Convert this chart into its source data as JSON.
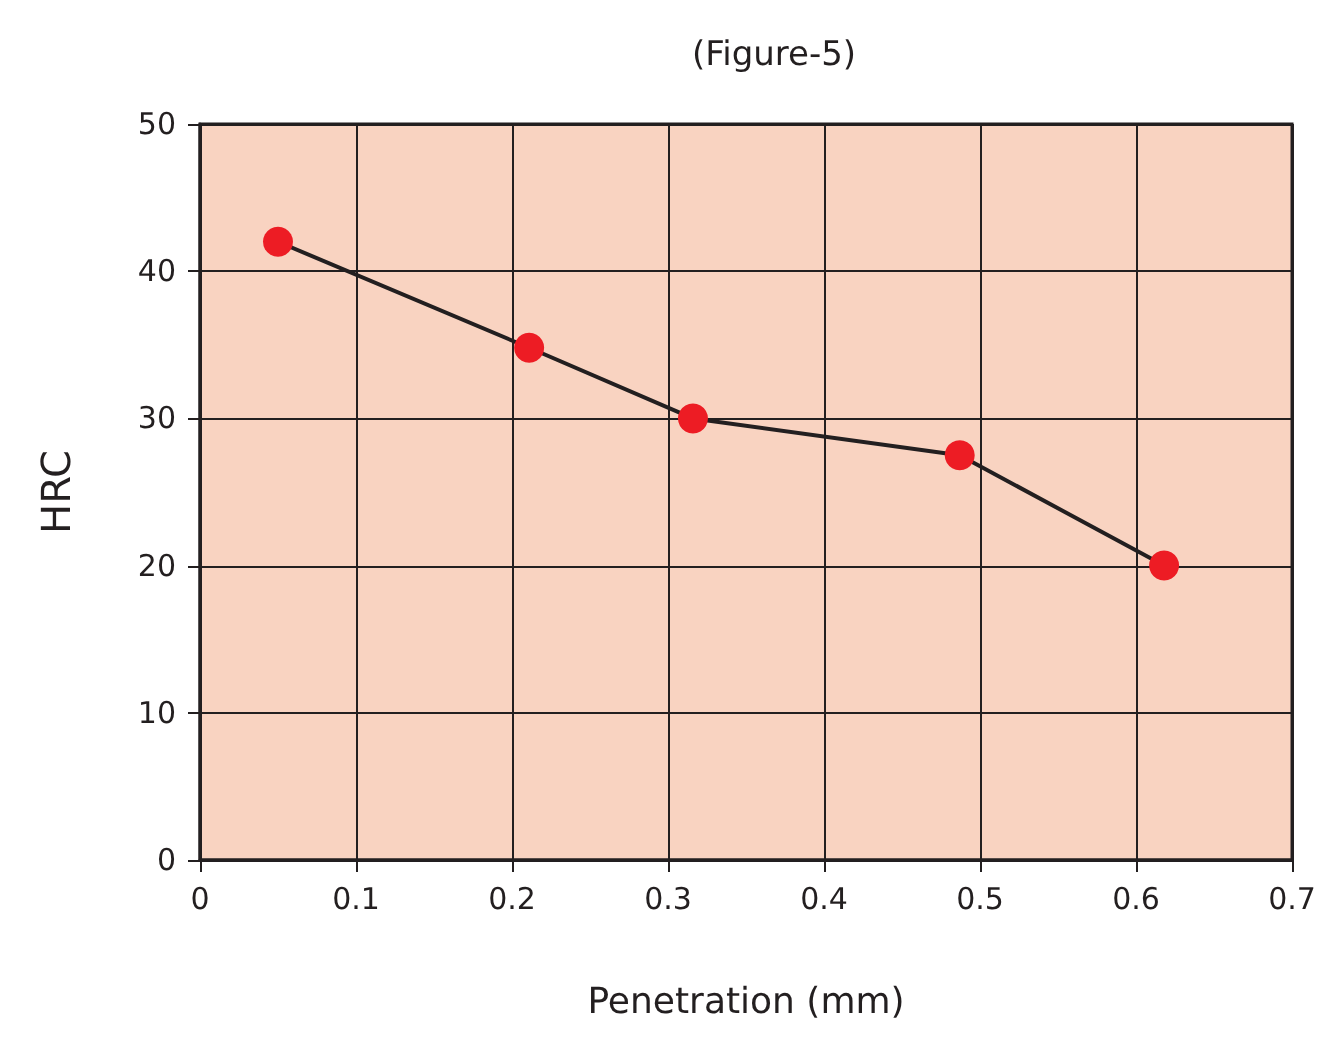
{
  "chart_data": {
    "type": "line",
    "title": "(Figure-5)",
    "xlabel": "Penetration (mm)",
    "ylabel": "HRC",
    "x": [
      0.05,
      0.211,
      0.316,
      0.487,
      0.618
    ],
    "series": [
      {
        "color": "#ed1c24",
        "values": [
          42,
          34.8,
          30,
          27.5,
          20
        ]
      }
    ],
    "xlim": [
      0,
      0.7
    ],
    "xticks": [
      0,
      0.1,
      0.2,
      0.3,
      0.4,
      0.5,
      0.6,
      0.7
    ],
    "ylim": [
      0,
      50
    ],
    "yticks": [
      0,
      10,
      20,
      30,
      40,
      50
    ],
    "grid": true,
    "marker": "circle",
    "line_style": "solid"
  }
}
